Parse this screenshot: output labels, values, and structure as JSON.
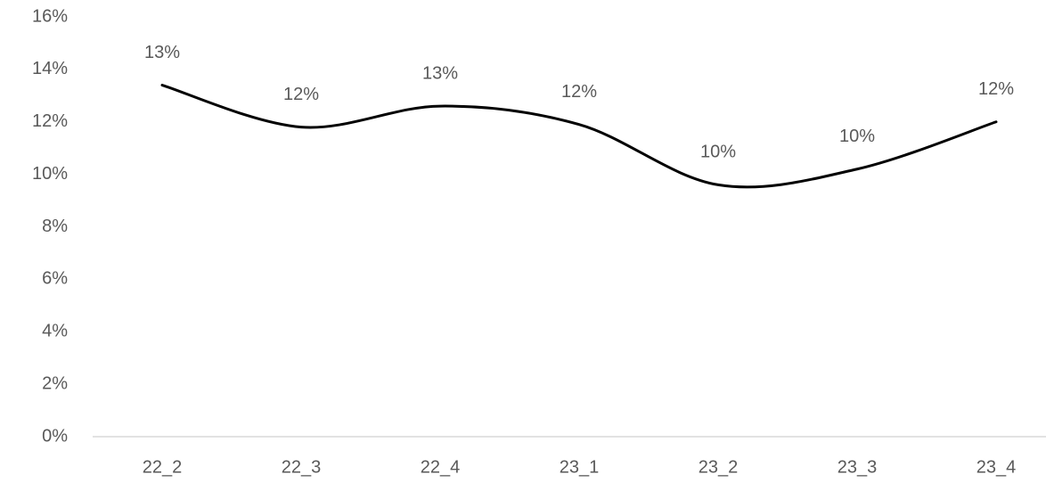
{
  "chart_data": {
    "type": "line",
    "categories": [
      "22_2",
      "22_3",
      "22_4",
      "23_1",
      "23_2",
      "23_3",
      "23_4"
    ],
    "series": [
      {
        "color": "#000000",
        "values": [
          13.4,
          11.8,
          12.6,
          11.9,
          9.6,
          10.2,
          12.0
        ],
        "value_labels": [
          "13%",
          "12%",
          "13%",
          "12%",
          "10%",
          "10%",
          "12%"
        ]
      }
    ],
    "ylim": [
      0,
      16
    ],
    "yticks": [
      {
        "value": 0,
        "label": "0%"
      },
      {
        "value": 2,
        "label": "2%"
      },
      {
        "value": 4,
        "label": "4%"
      },
      {
        "value": 6,
        "label": "6%"
      },
      {
        "value": 8,
        "label": "8%"
      },
      {
        "value": 10,
        "label": "10%"
      },
      {
        "value": 12,
        "label": "12%"
      },
      {
        "value": 14,
        "label": "14%"
      },
      {
        "value": 16,
        "label": "16%"
      }
    ],
    "grid": false,
    "smooth": true
  }
}
